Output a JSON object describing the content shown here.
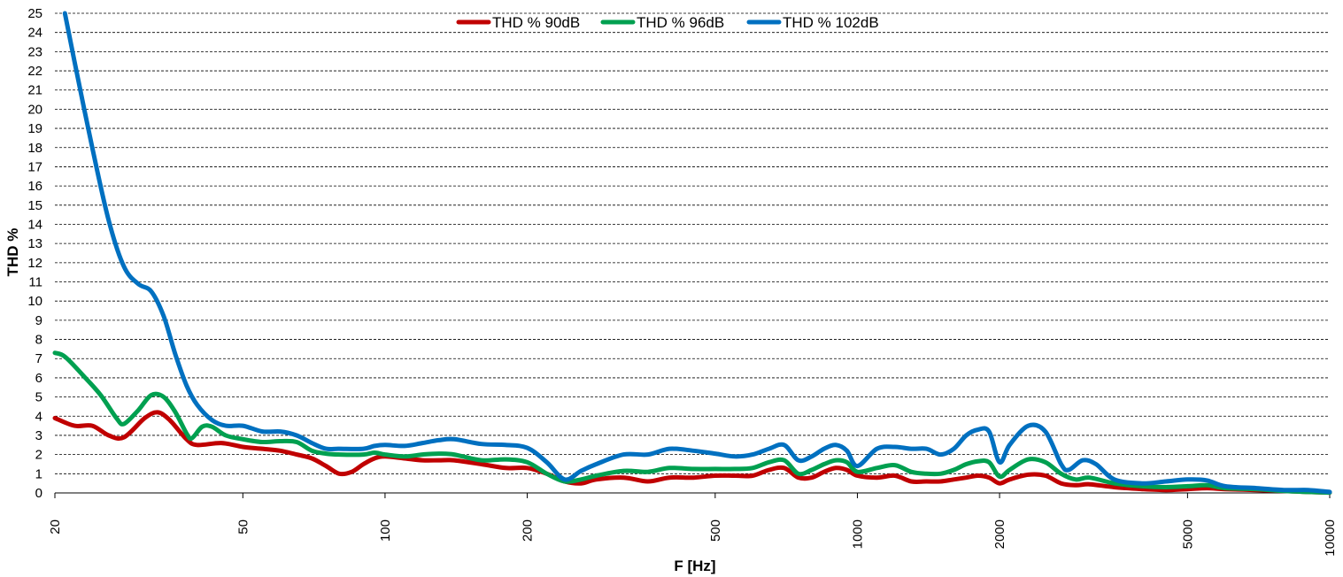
{
  "chart_data": {
    "type": "line",
    "xlabel": "F [Hz]",
    "ylabel": "THD %",
    "xscale": "log",
    "xlim": [
      20,
      10000
    ],
    "ylim": [
      0,
      25
    ],
    "x_ticks": [
      20,
      50,
      100,
      200,
      500,
      1000,
      2000,
      5000,
      10000
    ],
    "y_ticks": [
      0,
      1,
      2,
      3,
      4,
      5,
      6,
      7,
      8,
      9,
      10,
      11,
      12,
      13,
      14,
      15,
      16,
      17,
      18,
      19,
      20,
      21,
      22,
      23,
      24,
      25
    ],
    "grid": "horizontal dashed",
    "legend": "top-center",
    "series": [
      {
        "name": "THD % 90dB",
        "color": "#C00000",
        "points": [
          [
            20,
            3.9
          ],
          [
            22,
            3.5
          ],
          [
            24,
            3.5
          ],
          [
            26,
            3.0
          ],
          [
            28,
            2.9
          ],
          [
            31,
            3.9
          ],
          [
            33,
            4.2
          ],
          [
            35,
            3.8
          ],
          [
            38,
            2.8
          ],
          [
            40,
            2.5
          ],
          [
            45,
            2.6
          ],
          [
            50,
            2.4
          ],
          [
            55,
            2.3
          ],
          [
            60,
            2.2
          ],
          [
            65,
            2.0
          ],
          [
            70,
            1.8
          ],
          [
            75,
            1.4
          ],
          [
            80,
            1.0
          ],
          [
            85,
            1.1
          ],
          [
            90,
            1.5
          ],
          [
            95,
            1.8
          ],
          [
            100,
            1.9
          ],
          [
            110,
            1.8
          ],
          [
            120,
            1.7
          ],
          [
            130,
            1.7
          ],
          [
            140,
            1.7
          ],
          [
            160,
            1.5
          ],
          [
            180,
            1.3
          ],
          [
            200,
            1.3
          ],
          [
            220,
            1.0
          ],
          [
            240,
            0.6
          ],
          [
            260,
            0.5
          ],
          [
            280,
            0.7
          ],
          [
            320,
            0.8
          ],
          [
            360,
            0.6
          ],
          [
            400,
            0.8
          ],
          [
            450,
            0.8
          ],
          [
            500,
            0.9
          ],
          [
            550,
            0.9
          ],
          [
            600,
            0.9
          ],
          [
            650,
            1.2
          ],
          [
            700,
            1.3
          ],
          [
            750,
            0.8
          ],
          [
            800,
            0.8
          ],
          [
            850,
            1.1
          ],
          [
            900,
            1.3
          ],
          [
            950,
            1.2
          ],
          [
            1000,
            0.9
          ],
          [
            1100,
            0.8
          ],
          [
            1200,
            0.9
          ],
          [
            1300,
            0.6
          ],
          [
            1400,
            0.6
          ],
          [
            1500,
            0.6
          ],
          [
            1600,
            0.7
          ],
          [
            1700,
            0.8
          ],
          [
            1800,
            0.9
          ],
          [
            1900,
            0.8
          ],
          [
            2000,
            0.5
          ],
          [
            2100,
            0.7
          ],
          [
            2300,
            0.95
          ],
          [
            2500,
            0.9
          ],
          [
            2700,
            0.5
          ],
          [
            2900,
            0.4
          ],
          [
            3100,
            0.45
          ],
          [
            3500,
            0.3
          ],
          [
            4000,
            0.2
          ],
          [
            4500,
            0.15
          ],
          [
            5000,
            0.2
          ],
          [
            5500,
            0.25
          ],
          [
            6000,
            0.2
          ],
          [
            7000,
            0.15
          ],
          [
            8000,
            0.1
          ],
          [
            9000,
            0.05
          ],
          [
            10000,
            0.02
          ]
        ]
      },
      {
        "name": "THD % 96dB",
        "color": "#00A050",
        "points": [
          [
            20,
            7.3
          ],
          [
            21,
            7.1
          ],
          [
            23,
            6.1
          ],
          [
            25,
            5.1
          ],
          [
            27,
            3.9
          ],
          [
            28,
            3.6
          ],
          [
            30,
            4.3
          ],
          [
            32,
            5.1
          ],
          [
            34,
            5.0
          ],
          [
            36,
            4.2
          ],
          [
            38,
            3.1
          ],
          [
            39,
            2.85
          ],
          [
            41,
            3.45
          ],
          [
            43,
            3.45
          ],
          [
            46,
            3.0
          ],
          [
            50,
            2.8
          ],
          [
            55,
            2.65
          ],
          [
            60,
            2.7
          ],
          [
            65,
            2.65
          ],
          [
            70,
            2.2
          ],
          [
            75,
            2.05
          ],
          [
            80,
            2.0
          ],
          [
            90,
            2.0
          ],
          [
            95,
            2.1
          ],
          [
            100,
            2.0
          ],
          [
            110,
            1.9
          ],
          [
            120,
            2.0
          ],
          [
            130,
            2.05
          ],
          [
            140,
            2.0
          ],
          [
            160,
            1.7
          ],
          [
            180,
            1.75
          ],
          [
            200,
            1.6
          ],
          [
            220,
            1.0
          ],
          [
            240,
            0.6
          ],
          [
            260,
            0.7
          ],
          [
            280,
            0.9
          ],
          [
            320,
            1.15
          ],
          [
            360,
            1.1
          ],
          [
            400,
            1.3
          ],
          [
            450,
            1.25
          ],
          [
            500,
            1.25
          ],
          [
            550,
            1.25
          ],
          [
            600,
            1.3
          ],
          [
            650,
            1.6
          ],
          [
            700,
            1.7
          ],
          [
            750,
            1.0
          ],
          [
            800,
            1.2
          ],
          [
            850,
            1.5
          ],
          [
            900,
            1.7
          ],
          [
            950,
            1.6
          ],
          [
            1000,
            1.1
          ],
          [
            1100,
            1.3
          ],
          [
            1200,
            1.45
          ],
          [
            1300,
            1.1
          ],
          [
            1400,
            1.0
          ],
          [
            1500,
            1.0
          ],
          [
            1600,
            1.2
          ],
          [
            1700,
            1.5
          ],
          [
            1800,
            1.65
          ],
          [
            1900,
            1.6
          ],
          [
            2000,
            0.85
          ],
          [
            2100,
            1.2
          ],
          [
            2300,
            1.75
          ],
          [
            2500,
            1.6
          ],
          [
            2700,
            1.0
          ],
          [
            2900,
            0.7
          ],
          [
            3100,
            0.8
          ],
          [
            3500,
            0.5
          ],
          [
            4000,
            0.35
          ],
          [
            4500,
            0.3
          ],
          [
            5000,
            0.35
          ],
          [
            5500,
            0.4
          ],
          [
            6000,
            0.25
          ],
          [
            7000,
            0.2
          ],
          [
            8000,
            0.1
          ],
          [
            9000,
            0.05
          ],
          [
            10000,
            0.02
          ]
        ]
      },
      {
        "name": "THD % 102dB",
        "color": "#0070C0",
        "points": [
          [
            21,
            25
          ],
          [
            22,
            22.5
          ],
          [
            24,
            18.0
          ],
          [
            26,
            14.2
          ],
          [
            28,
            11.8
          ],
          [
            30,
            10.9
          ],
          [
            32,
            10.5
          ],
          [
            34,
            9.2
          ],
          [
            36,
            7.2
          ],
          [
            38,
            5.6
          ],
          [
            40,
            4.6
          ],
          [
            43,
            3.8
          ],
          [
            46,
            3.5
          ],
          [
            50,
            3.5
          ],
          [
            55,
            3.2
          ],
          [
            60,
            3.2
          ],
          [
            65,
            3.0
          ],
          [
            70,
            2.6
          ],
          [
            75,
            2.3
          ],
          [
            80,
            2.3
          ],
          [
            90,
            2.3
          ],
          [
            95,
            2.45
          ],
          [
            100,
            2.5
          ],
          [
            110,
            2.45
          ],
          [
            120,
            2.6
          ],
          [
            130,
            2.75
          ],
          [
            140,
            2.8
          ],
          [
            160,
            2.55
          ],
          [
            180,
            2.5
          ],
          [
            200,
            2.35
          ],
          [
            220,
            1.6
          ],
          [
            240,
            0.7
          ],
          [
            260,
            1.15
          ],
          [
            280,
            1.5
          ],
          [
            320,
            2.0
          ],
          [
            360,
            2.0
          ],
          [
            400,
            2.3
          ],
          [
            450,
            2.2
          ],
          [
            500,
            2.05
          ],
          [
            550,
            1.9
          ],
          [
            600,
            2.0
          ],
          [
            650,
            2.3
          ],
          [
            700,
            2.5
          ],
          [
            750,
            1.7
          ],
          [
            800,
            1.9
          ],
          [
            850,
            2.3
          ],
          [
            900,
            2.5
          ],
          [
            950,
            2.2
          ],
          [
            1000,
            1.4
          ],
          [
            1100,
            2.3
          ],
          [
            1200,
            2.4
          ],
          [
            1300,
            2.3
          ],
          [
            1400,
            2.3
          ],
          [
            1500,
            2.0
          ],
          [
            1600,
            2.3
          ],
          [
            1700,
            3.0
          ],
          [
            1800,
            3.3
          ],
          [
            1900,
            3.2
          ],
          [
            2000,
            1.6
          ],
          [
            2100,
            2.5
          ],
          [
            2300,
            3.5
          ],
          [
            2500,
            3.2
          ],
          [
            2700,
            1.5
          ],
          [
            2800,
            1.2
          ],
          [
            3000,
            1.7
          ],
          [
            3200,
            1.5
          ],
          [
            3500,
            0.7
          ],
          [
            4000,
            0.5
          ],
          [
            4500,
            0.6
          ],
          [
            5000,
            0.7
          ],
          [
            5500,
            0.65
          ],
          [
            6000,
            0.35
          ],
          [
            7000,
            0.25
          ],
          [
            8000,
            0.15
          ],
          [
            9000,
            0.15
          ],
          [
            10000,
            0.05
          ]
        ]
      }
    ]
  }
}
